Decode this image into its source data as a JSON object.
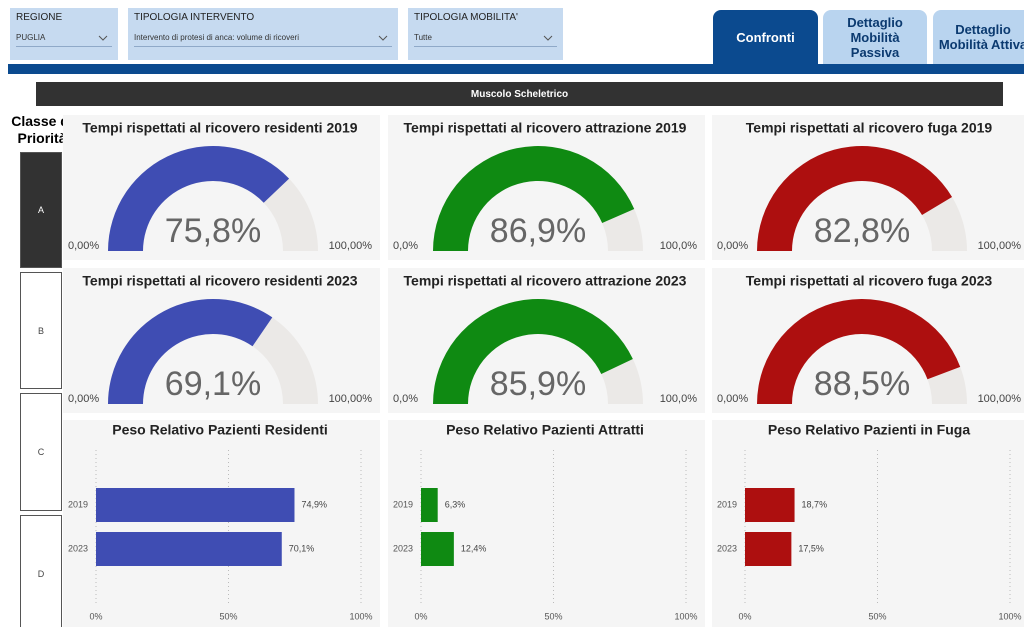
{
  "filters": [
    {
      "label": "REGIONE",
      "value": "PUGLIA"
    },
    {
      "label": "TIPOLOGIA INTERVENTO",
      "value": "Intervento di protesi di anca: volume di ricoveri"
    },
    {
      "label": "TIPOLOGIA MOBILITA'",
      "value": "Tutte"
    }
  ],
  "tabs": [
    {
      "label": "Confronti",
      "active": true
    },
    {
      "label": "Dettaglio Mobilità Passiva",
      "active": false
    },
    {
      "label": "Dettaglio Mobilità Attiva",
      "active": false
    }
  ],
  "section_title": "Muscolo Scheletrico",
  "priority": {
    "title": "Classe di Priorità",
    "classes": [
      {
        "label": "A",
        "selected": true
      },
      {
        "label": "B",
        "selected": false
      },
      {
        "label": "C",
        "selected": false
      },
      {
        "label": "D",
        "selected": false
      }
    ]
  },
  "chart_data": [
    {
      "type": "gauge",
      "title": "Tempi rispettati al ricovero residenti 2019",
      "value": 75.8,
      "value_label": "75,8%",
      "min": {
        "value": 0,
        "label": "0,00%"
      },
      "max": {
        "value": 100,
        "label": "100,00%"
      },
      "color": "#3f4db3"
    },
    {
      "type": "gauge",
      "title": "Tempi rispettati al ricovero attrazione 2019",
      "value": 86.9,
      "value_label": "86,9%",
      "min": {
        "value": 0,
        "label": "0,0%"
      },
      "max": {
        "value": 100,
        "label": "100,0%"
      },
      "color": "#0f8a12"
    },
    {
      "type": "gauge",
      "title": "Tempi rispettati al ricovero fuga 2019",
      "value": 82.8,
      "value_label": "82,8%",
      "min": {
        "value": 0,
        "label": "0,00%"
      },
      "max": {
        "value": 100,
        "label": "100,00%"
      },
      "color": "#ad0f0f"
    },
    {
      "type": "gauge",
      "title": "Tempi rispettati al ricovero residenti 2023",
      "value": 69.1,
      "value_label": "69,1%",
      "min": {
        "value": 0,
        "label": "0,00%"
      },
      "max": {
        "value": 100,
        "label": "100,00%"
      },
      "color": "#3f4db3"
    },
    {
      "type": "gauge",
      "title": "Tempi rispettati al ricovero attrazione 2023",
      "value": 85.9,
      "value_label": "85,9%",
      "min": {
        "value": 0,
        "label": "0,0%"
      },
      "max": {
        "value": 100,
        "label": "100,0%"
      },
      "color": "#0f8a12"
    },
    {
      "type": "gauge",
      "title": "Tempi rispettati al ricovero fuga 2023",
      "value": 88.5,
      "value_label": "88,5%",
      "min": {
        "value": 0,
        "label": "0,00%"
      },
      "max": {
        "value": 100,
        "label": "100,00%"
      },
      "color": "#ad0f0f"
    },
    {
      "type": "bar",
      "title": "Peso Relativo Pazienti Residenti",
      "categories": [
        "2019",
        "2023"
      ],
      "values": [
        74.9,
        70.1
      ],
      "value_labels": [
        "74,9%",
        "70,1%"
      ],
      "xlim": [
        0,
        100
      ],
      "xticks": [
        {
          "value": 0,
          "label": "0%"
        },
        {
          "value": 50,
          "label": "50%"
        },
        {
          "value": 100,
          "label": "100%"
        }
      ],
      "color": "#3f4db3",
      "grid": true
    },
    {
      "type": "bar",
      "title": "Peso Relativo Pazienti Attratti",
      "categories": [
        "2019",
        "2023"
      ],
      "values": [
        6.3,
        12.4
      ],
      "value_labels": [
        "6,3%",
        "12,4%"
      ],
      "xlim": [
        0,
        100
      ],
      "xticks": [
        {
          "value": 0,
          "label": "0%"
        },
        {
          "value": 50,
          "label": "50%"
        },
        {
          "value": 100,
          "label": "100%"
        }
      ],
      "color": "#0f8a12",
      "grid": true
    },
    {
      "type": "bar",
      "title": "Peso Relativo Pazienti in Fuga",
      "categories": [
        "2019",
        "2023"
      ],
      "values": [
        18.7,
        17.5
      ],
      "value_labels": [
        "18,7%",
        "17,5%"
      ],
      "xlim": [
        0,
        100
      ],
      "xticks": [
        {
          "value": 0,
          "label": "0%"
        },
        {
          "value": 50,
          "label": "50%"
        },
        {
          "value": 100,
          "label": "100%"
        }
      ],
      "color": "#ad0f0f",
      "grid": true
    }
  ]
}
